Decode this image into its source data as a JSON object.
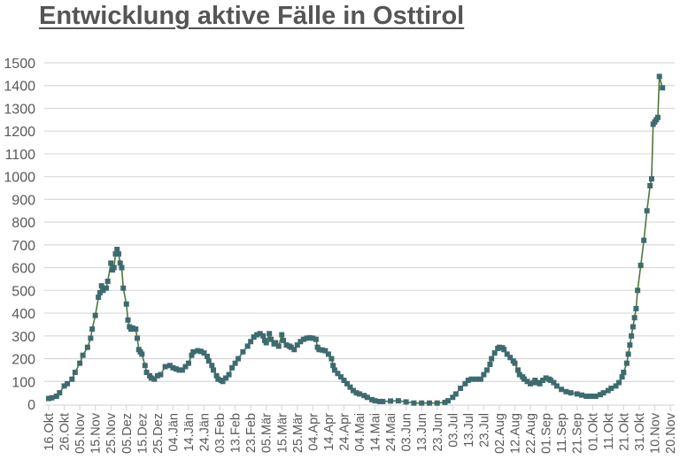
{
  "title": "Entwicklung aktive Fälle in Osttirol",
  "colors": {
    "line": "#4a7a3a",
    "marker": "#3d6b6f",
    "grid": "#d9d9d9",
    "axis_text": "#595959",
    "title": "#555555"
  },
  "chart_data": {
    "type": "line",
    "title": "Entwicklung aktive Fälle in Osttirol",
    "xlabel": "",
    "ylabel": "",
    "ylim": [
      0,
      1500
    ],
    "ytick_step": 100,
    "yticks": [
      0,
      100,
      200,
      300,
      400,
      500,
      600,
      700,
      800,
      900,
      1000,
      1100,
      1200,
      1300,
      1400,
      1500
    ],
    "grid": true,
    "legend": "none",
    "marker": "square",
    "x_start_label": "16.Okt",
    "x_tick_interval_days": 10,
    "x_tick_labels": [
      "16.Okt",
      "26.Okt",
      "05.Nov",
      "15.Nov",
      "25.Nov",
      "05.Dez",
      "15.Dez",
      "25.Dez",
      "04.Jän",
      "14.Jän",
      "24.Jän",
      "03.Feb",
      "13.Feb",
      "23.Feb",
      "05.Mär",
      "15.Mär",
      "25.Mär",
      "04.Apr",
      "14.Apr",
      "24.Apr",
      "04.Mai",
      "14.Mai",
      "24.Mai",
      "03.Jun",
      "13.Jun",
      "23.Jun",
      "03.Jul",
      "13.Jul",
      "23.Jul",
      "02.Aug",
      "12.Aug",
      "22.Aug",
      "01.Sep",
      "11.Sep",
      "21.Sep",
      "01.Okt",
      "11.Okt",
      "21.Okt",
      "31.Okt",
      "10.Nov",
      "20.Nov"
    ],
    "series": [
      {
        "name": "Aktive Fälle",
        "points": [
          [
            0,
            25
          ],
          [
            2,
            28
          ],
          [
            5,
            35
          ],
          [
            7,
            50
          ],
          [
            10,
            80
          ],
          [
            12,
            90
          ],
          [
            15,
            110
          ],
          [
            17,
            140
          ],
          [
            20,
            180
          ],
          [
            22,
            215
          ],
          [
            25,
            250
          ],
          [
            27,
            290
          ],
          [
            28,
            330
          ],
          [
            30,
            390
          ],
          [
            32,
            470
          ],
          [
            33,
            490
          ],
          [
            34,
            520
          ],
          [
            35,
            500
          ],
          [
            37,
            510
          ],
          [
            38,
            540
          ],
          [
            40,
            620
          ],
          [
            41,
            590
          ],
          [
            42,
            600
          ],
          [
            43,
            660
          ],
          [
            44,
            680
          ],
          [
            45,
            660
          ],
          [
            46,
            620
          ],
          [
            47,
            600
          ],
          [
            48,
            510
          ],
          [
            50,
            440
          ],
          [
            51,
            370
          ],
          [
            52,
            340
          ],
          [
            53,
            330
          ],
          [
            54,
            335
          ],
          [
            56,
            330
          ],
          [
            57,
            290
          ],
          [
            58,
            240
          ],
          [
            59,
            230
          ],
          [
            60,
            220
          ],
          [
            62,
            170
          ],
          [
            63,
            140
          ],
          [
            65,
            125
          ],
          [
            66,
            115
          ],
          [
            68,
            110
          ],
          [
            70,
            125
          ],
          [
            72,
            130
          ],
          [
            75,
            165
          ],
          [
            78,
            170
          ],
          [
            80,
            160
          ],
          [
            82,
            155
          ],
          [
            84,
            150
          ],
          [
            86,
            150
          ],
          [
            88,
            165
          ],
          [
            90,
            180
          ],
          [
            92,
            215
          ],
          [
            93,
            230
          ],
          [
            96,
            235
          ],
          [
            98,
            232
          ],
          [
            100,
            225
          ],
          [
            102,
            210
          ],
          [
            103,
            190
          ],
          [
            105,
            170
          ],
          [
            106,
            150
          ],
          [
            108,
            125
          ],
          [
            109,
            110
          ],
          [
            111,
            105
          ],
          [
            112,
            100
          ],
          [
            114,
            115
          ],
          [
            116,
            130
          ],
          [
            118,
            160
          ],
          [
            120,
            180
          ],
          [
            122,
            200
          ],
          [
            125,
            230
          ],
          [
            128,
            255
          ],
          [
            130,
            275
          ],
          [
            132,
            295
          ],
          [
            134,
            305
          ],
          [
            136,
            310
          ],
          [
            138,
            300
          ],
          [
            139,
            280
          ],
          [
            140,
            270
          ],
          [
            142,
            310
          ],
          [
            143,
            285
          ],
          [
            145,
            265
          ],
          [
            146,
            270
          ],
          [
            148,
            255
          ],
          [
            150,
            305
          ],
          [
            151,
            280
          ],
          [
            153,
            260
          ],
          [
            155,
            255
          ],
          [
            156,
            250
          ],
          [
            158,
            240
          ],
          [
            160,
            260
          ],
          [
            162,
            275
          ],
          [
            164,
            285
          ],
          [
            166,
            290
          ],
          [
            168,
            292
          ],
          [
            170,
            290
          ],
          [
            172,
            285
          ],
          [
            173,
            250
          ],
          [
            174,
            240
          ],
          [
            176,
            238
          ],
          [
            178,
            235
          ],
          [
            180,
            220
          ],
          [
            182,
            200
          ],
          [
            183,
            170
          ],
          [
            184,
            150
          ],
          [
            186,
            135
          ],
          [
            188,
            120
          ],
          [
            190,
            105
          ],
          [
            192,
            90
          ],
          [
            194,
            75
          ],
          [
            196,
            60
          ],
          [
            198,
            50
          ],
          [
            200,
            45
          ],
          [
            203,
            38
          ],
          [
            205,
            30
          ],
          [
            208,
            20
          ],
          [
            210,
            15
          ],
          [
            213,
            12
          ],
          [
            215,
            12
          ],
          [
            220,
            14
          ],
          [
            225,
            15
          ],
          [
            230,
            10
          ],
          [
            235,
            5
          ],
          [
            240,
            5
          ],
          [
            245,
            5
          ],
          [
            250,
            5
          ],
          [
            255,
            8
          ],
          [
            257,
            15
          ],
          [
            260,
            30
          ],
          [
            262,
            45
          ],
          [
            265,
            70
          ],
          [
            268,
            90
          ],
          [
            270,
            105
          ],
          [
            272,
            110
          ],
          [
            275,
            110
          ],
          [
            278,
            110
          ],
          [
            280,
            130
          ],
          [
            282,
            150
          ],
          [
            284,
            175
          ],
          [
            285,
            200
          ],
          [
            287,
            225
          ],
          [
            289,
            245
          ],
          [
            290,
            250
          ],
          [
            292,
            248
          ],
          [
            293,
            240
          ],
          [
            295,
            220
          ],
          [
            297,
            205
          ],
          [
            299,
            190
          ],
          [
            300,
            180
          ],
          [
            302,
            150
          ],
          [
            303,
            130
          ],
          [
            305,
            120
          ],
          [
            306,
            110
          ],
          [
            308,
            100
          ],
          [
            310,
            90
          ],
          [
            312,
            95
          ],
          [
            313,
            105
          ],
          [
            315,
            95
          ],
          [
            316,
            90
          ],
          [
            318,
            105
          ],
          [
            320,
            115
          ],
          [
            322,
            110
          ],
          [
            323,
            105
          ],
          [
            325,
            95
          ],
          [
            327,
            80
          ],
          [
            330,
            65
          ],
          [
            333,
            55
          ],
          [
            336,
            50
          ],
          [
            340,
            45
          ],
          [
            343,
            40
          ],
          [
            346,
            35
          ],
          [
            349,
            35
          ],
          [
            352,
            35
          ],
          [
            355,
            42
          ],
          [
            357,
            50
          ],
          [
            360,
            60
          ],
          [
            362,
            70
          ],
          [
            365,
            80
          ],
          [
            367,
            95
          ],
          [
            369,
            120
          ],
          [
            370,
            140
          ],
          [
            372,
            180
          ],
          [
            373,
            220
          ],
          [
            374,
            260
          ],
          [
            375,
            300
          ],
          [
            376,
            340
          ],
          [
            377,
            380
          ],
          [
            378,
            420
          ],
          [
            379,
            500
          ],
          [
            381,
            610
          ],
          [
            383,
            720
          ],
          [
            385,
            850
          ],
          [
            387,
            960
          ],
          [
            388,
            990
          ],
          [
            389,
            1230
          ],
          [
            390,
            1240
          ],
          [
            391,
            1250
          ],
          [
            392,
            1260
          ],
          [
            393,
            1440
          ],
          [
            395,
            1390
          ]
        ]
      }
    ]
  }
}
